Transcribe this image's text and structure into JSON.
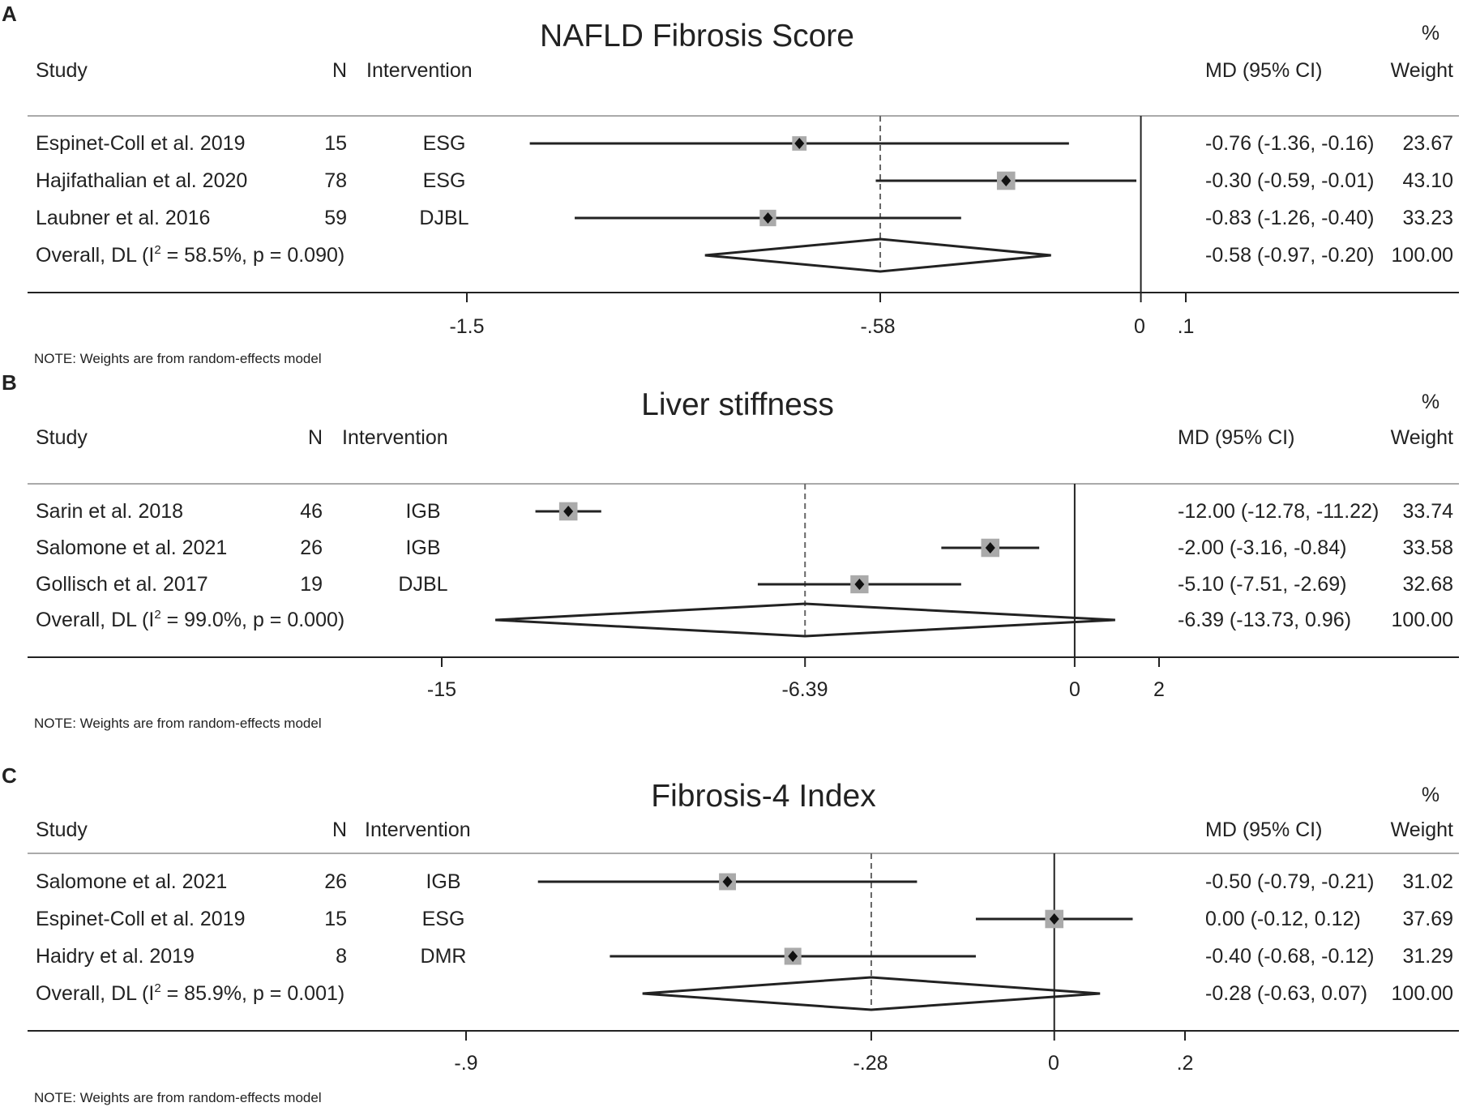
{
  "chart_data": [
    {
      "type": "forest",
      "panel": "A",
      "title": "NAFLD Fibrosis Score",
      "headers": {
        "study": "Study",
        "n": "N",
        "intervention": "Intervention",
        "md": "MD (95% CI)",
        "pct": "%",
        "weight": "Weight"
      },
      "xlim": [
        -1.5,
        0.1
      ],
      "ticks": [
        "-1.5",
        "-.58",
        "0",
        ".1"
      ],
      "tick_values": [
        -1.5,
        -0.58,
        0,
        0.1
      ],
      "overall_line": -0.58,
      "studies": [
        {
          "study": "Espinet-Coll et al. 2019",
          "n": "15",
          "intervention": "ESG",
          "md": -0.76,
          "lo": -1.36,
          "hi": -0.16,
          "ci_text": "-0.76 (-1.36, -0.16)",
          "weight": 23.67,
          "weight_text": "23.67"
        },
        {
          "study": "Hajifathalian et al. 2020",
          "n": "78",
          "intervention": "ESG",
          "md": -0.3,
          "lo": -0.59,
          "hi": -0.01,
          "ci_text": "-0.30 (-0.59, -0.01)",
          "weight": 43.1,
          "weight_text": "43.10"
        },
        {
          "study": "Laubner et al. 2016",
          "n": "59",
          "intervention": "DJBL",
          "md": -0.83,
          "lo": -1.26,
          "hi": -0.4,
          "ci_text": "-0.83 (-1.26, -0.40)",
          "weight": 33.23,
          "weight_text": "33.23"
        }
      ],
      "overall": {
        "label_pre": "Overall, DL (I",
        "sup": "2",
        "label_post": " = 58.5%, p = 0.090)",
        "md": -0.58,
        "lo": -0.97,
        "hi": -0.2,
        "ci_text": "-0.58 (-0.97, -0.20)",
        "weight_text": "100.00"
      },
      "note": "NOTE: Weights are from random-effects model"
    },
    {
      "type": "forest",
      "panel": "B",
      "title": "Liver stiffness",
      "headers": {
        "study": "Study",
        "n": "N",
        "intervention": "Intervention",
        "md": "MD (95% CI)",
        "pct": "%",
        "weight": "Weight"
      },
      "xlim": [
        -15,
        2
      ],
      "ticks": [
        "-15",
        "-6.39",
        "0",
        "2"
      ],
      "tick_values": [
        -15,
        -6.39,
        0,
        2
      ],
      "overall_line": -6.39,
      "studies": [
        {
          "study": "Sarin et al. 2018",
          "n": "46",
          "intervention": "IGB",
          "md": -12.0,
          "lo": -12.78,
          "hi": -11.22,
          "ci_text": "-12.00 (-12.78, -11.22)",
          "weight": 33.74,
          "weight_text": "33.74"
        },
        {
          "study": "Salomone et al. 2021",
          "n": "26",
          "intervention": "IGB",
          "md": -2.0,
          "lo": -3.16,
          "hi": -0.84,
          "ci_text": "-2.00 (-3.16, -0.84)",
          "weight": 33.58,
          "weight_text": "33.58"
        },
        {
          "study": "Gollisch et al. 2017",
          "n": "19",
          "intervention": "DJBL",
          "md": -5.1,
          "lo": -7.51,
          "hi": -2.69,
          "ci_text": "-5.10 (-7.51, -2.69)",
          "weight": 32.68,
          "weight_text": "32.68"
        }
      ],
      "overall": {
        "label_pre": "Overall, DL (I",
        "sup": "2",
        "label_post": " = 99.0%, p = 0.000)",
        "md": -6.39,
        "lo": -13.73,
        "hi": 0.96,
        "ci_text": "-6.39 (-13.73, 0.96)",
        "weight_text": "100.00"
      },
      "note": "NOTE: Weights are from random-effects model"
    },
    {
      "type": "forest",
      "panel": "C",
      "title": "Fibrosis-4 Index",
      "headers": {
        "study": "Study",
        "n": "N",
        "intervention": "Intervention",
        "md": "MD (95% CI)",
        "pct": "%",
        "weight": "Weight"
      },
      "xlim": [
        -0.9,
        0.2
      ],
      "ticks": [
        "-.9",
        "-.28",
        "0",
        ".2"
      ],
      "tick_values": [
        -0.9,
        -0.28,
        0,
        0.2
      ],
      "overall_line": -0.28,
      "studies": [
        {
          "study": "Salomone et al. 2021",
          "n": "26",
          "intervention": "IGB",
          "md": -0.5,
          "lo": -0.79,
          "hi": -0.21,
          "ci_text": "-0.50 (-0.79, -0.21)",
          "weight": 31.02,
          "weight_text": "31.02"
        },
        {
          "study": "Espinet-Coll et al. 2019",
          "n": "15",
          "intervention": "ESG",
          "md": 0.0,
          "lo": -0.12,
          "hi": 0.12,
          "ci_text": "0.00 (-0.12, 0.12)",
          "weight": 37.69,
          "weight_text": "37.69"
        },
        {
          "study": "Haidry et al. 2019",
          "n": "8",
          "intervention": "DMR",
          "md": -0.4,
          "lo": -0.68,
          "hi": -0.12,
          "ci_text": "-0.40 (-0.68, -0.12)",
          "weight": 31.29,
          "weight_text": "31.29"
        }
      ],
      "overall": {
        "label_pre": "Overall, DL (I",
        "sup": "2",
        "label_post": " = 85.9%, p = 0.001)",
        "md": -0.28,
        "lo": -0.63,
        "hi": 0.07,
        "ci_text": "-0.28 (-0.63, 0.07)",
        "weight_text": "100.00"
      },
      "note": "NOTE: Weights are from random-effects model"
    }
  ]
}
